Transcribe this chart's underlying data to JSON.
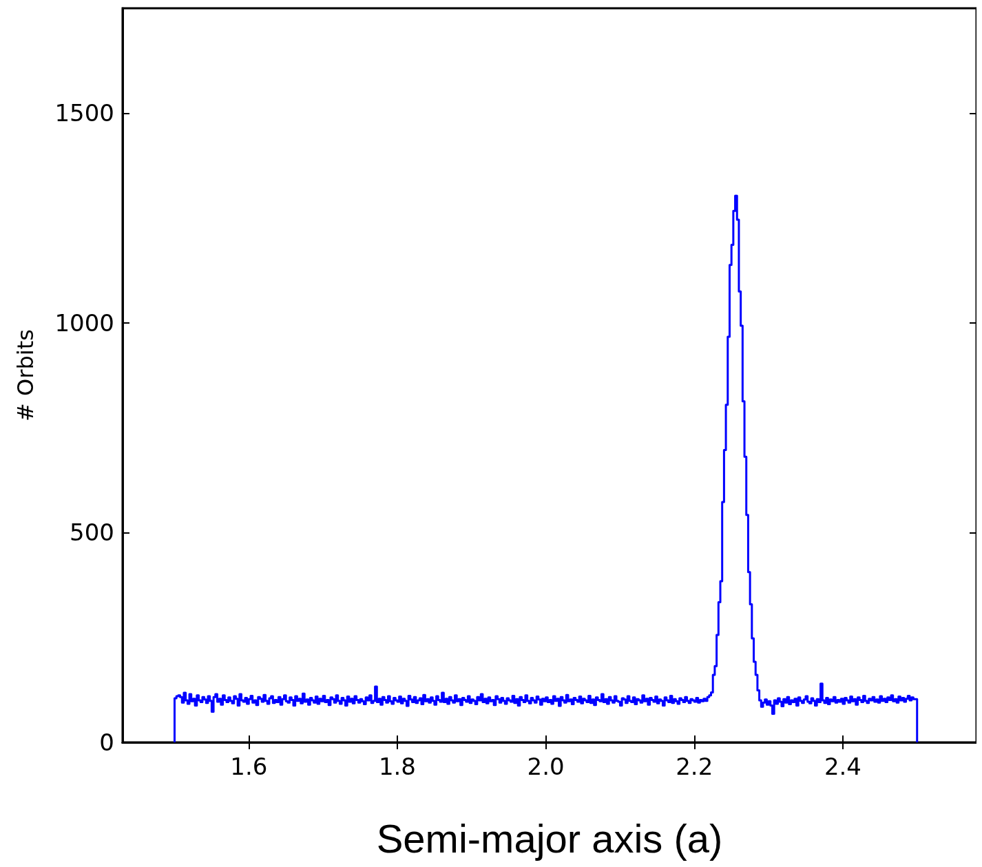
{
  "chart_data": {
    "type": "histogram",
    "xlabel": "Semi-major axis (a)",
    "ylabel": "# Orbits",
    "color": "#0000ff",
    "xlim": [
      1.43,
      2.58
    ],
    "ylim": [
      0,
      1750
    ],
    "xticks": [
      {
        "value": 1.6,
        "label": "1.6"
      },
      {
        "value": 1.8,
        "label": "1.8"
      },
      {
        "value": 2.0,
        "label": "2.0"
      },
      {
        "value": 2.2,
        "label": "2.2"
      },
      {
        "value": 2.4,
        "label": "2.4"
      }
    ],
    "yticks": [
      0,
      500,
      1000,
      1500
    ],
    "bins": [
      1.5,
      1.5025,
      1.505,
      1.5075,
      1.51,
      1.5125,
      1.515,
      1.5175,
      1.52,
      1.5225,
      1.525,
      1.5275,
      1.53,
      1.5325,
      1.535,
      1.5375,
      1.54,
      1.5425,
      1.545,
      1.5475,
      1.55,
      1.5525,
      1.555,
      1.5575,
      1.56,
      1.5625,
      1.565,
      1.5675,
      1.57,
      1.5725,
      1.575,
      1.5775,
      1.58,
      1.5825,
      1.585,
      1.5875,
      1.59,
      1.5925,
      1.595,
      1.5975,
      1.6,
      1.6025,
      1.605,
      1.6075,
      1.61,
      1.6125,
      1.615,
      1.6175,
      1.62,
      1.6225,
      1.625,
      1.6275,
      1.63,
      1.6325,
      1.635,
      1.6375,
      1.64,
      1.6425,
      1.645,
      1.6475,
      1.65,
      1.6525,
      1.655,
      1.6575,
      1.66,
      1.6625,
      1.665,
      1.6675,
      1.67,
      1.6725,
      1.675,
      1.6775,
      1.68,
      1.6825,
      1.685,
      1.6875,
      1.69,
      1.6925,
      1.695,
      1.6975,
      1.7,
      1.7025,
      1.705,
      1.7075,
      1.71,
      1.7125,
      1.715,
      1.7175,
      1.72,
      1.7225,
      1.725,
      1.7275,
      1.73,
      1.7325,
      1.735,
      1.7375,
      1.74,
      1.7425,
      1.745,
      1.7475,
      1.75,
      1.7525,
      1.755,
      1.7575,
      1.76,
      1.7625,
      1.765,
      1.7675,
      1.77,
      1.7725,
      1.775,
      1.7775,
      1.78,
      1.7825,
      1.785,
      1.7875,
      1.79,
      1.7925,
      1.795,
      1.7975,
      1.8,
      1.8025,
      1.805,
      1.8075,
      1.81,
      1.8125,
      1.815,
      1.8175,
      1.82,
      1.8225,
      1.825,
      1.8275,
      1.83,
      1.8325,
      1.835,
      1.8375,
      1.84,
      1.8425,
      1.845,
      1.8475,
      1.85,
      1.8525,
      1.855,
      1.8575,
      1.86,
      1.8625,
      1.865,
      1.8675,
      1.87,
      1.8725,
      1.875,
      1.8775,
      1.88,
      1.8825,
      1.885,
      1.8875,
      1.89,
      1.8925,
      1.895,
      1.8975,
      1.9,
      1.9025,
      1.905,
      1.9075,
      1.91,
      1.9125,
      1.915,
      1.9175,
      1.92,
      1.9225,
      1.925,
      1.9275,
      1.93,
      1.9325,
      1.935,
      1.9375,
      1.94,
      1.9425,
      1.945,
      1.9475,
      1.95,
      1.9525,
      1.955,
      1.9575,
      1.96,
      1.9625,
      1.965,
      1.9675,
      1.97,
      1.9725,
      1.975,
      1.9775,
      1.98,
      1.9825,
      1.985,
      1.9875,
      1.99,
      1.9925,
      1.995,
      1.9975,
      2.0,
      2.0025,
      2.005,
      2.0075,
      2.01,
      2.0125,
      2.015,
      2.0175,
      2.02,
      2.0225,
      2.025,
      2.0275,
      2.03,
      2.0325,
      2.035,
      2.0375,
      2.04,
      2.0425,
      2.045,
      2.0475,
      2.05,
      2.0525,
      2.055,
      2.0575,
      2.06,
      2.0625,
      2.065,
      2.0675,
      2.07,
      2.0725,
      2.075,
      2.0775,
      2.08,
      2.0825,
      2.085,
      2.0875,
      2.09,
      2.0925,
      2.095,
      2.0975,
      2.1,
      2.1025,
      2.105,
      2.1075,
      2.11,
      2.1125,
      2.115,
      2.1175,
      2.12,
      2.1225,
      2.125,
      2.1275,
      2.13,
      2.1325,
      2.135,
      2.1375,
      2.14,
      2.1425,
      2.145,
      2.1475,
      2.15,
      2.1525,
      2.155,
      2.1575,
      2.16,
      2.1625,
      2.165,
      2.1675,
      2.17,
      2.1725,
      2.175,
      2.1775,
      2.18,
      2.1825,
      2.185,
      2.1875,
      2.19,
      2.1925,
      2.195,
      2.1975,
      2.2,
      2.2025,
      2.205,
      2.2075,
      2.21,
      2.2125,
      2.215,
      2.2175,
      2.22,
      2.2225,
      2.225,
      2.2275,
      2.23,
      2.2325,
      2.235,
      2.2375,
      2.24,
      2.2425,
      2.245,
      2.2475,
      2.25,
      2.2525,
      2.255,
      2.2575,
      2.26,
      2.2625,
      2.265,
      2.2675,
      2.27,
      2.2725,
      2.275,
      2.2775,
      2.28,
      2.2825,
      2.285,
      2.2875,
      2.29,
      2.2925,
      2.295,
      2.2975,
      2.3,
      2.3025,
      2.305,
      2.3075,
      2.31,
      2.3125,
      2.315,
      2.3175,
      2.32,
      2.3225,
      2.325,
      2.3275,
      2.33,
      2.3325,
      2.335,
      2.3375,
      2.34,
      2.3425,
      2.345,
      2.3475,
      2.35,
      2.3525,
      2.355,
      2.3575,
      2.36,
      2.3625,
      2.365,
      2.3675,
      2.37,
      2.3725,
      2.375,
      2.3775,
      2.38,
      2.3825,
      2.385,
      2.3875,
      2.39,
      2.3925,
      2.395,
      2.3975,
      2.4,
      2.4025,
      2.405,
      2.4075,
      2.41,
      2.4125,
      2.415,
      2.4175,
      2.42,
      2.4225,
      2.425,
      2.4275,
      2.43,
      2.4325,
      2.435,
      2.4375,
      2.44,
      2.4425,
      2.445,
      2.4475,
      2.45,
      2.4525,
      2.455,
      2.4575,
      2.46,
      2.4625,
      2.465,
      2.4675,
      2.47,
      2.4725,
      2.475,
      2.4775,
      2.48,
      2.4825,
      2.485,
      2.4875,
      2.49,
      2.4925,
      2.495,
      2.4975,
      2.5
    ],
    "values": [
      105,
      110,
      112,
      108,
      95,
      118,
      100,
      92,
      115,
      98,
      104,
      88,
      112,
      100,
      96,
      108,
      102,
      94,
      110,
      99,
      73,
      108,
      115,
      97,
      104,
      90,
      112,
      101,
      96,
      107,
      99,
      93,
      110,
      104,
      88,
      115,
      100,
      97,
      106,
      92,
      103,
      111,
      95,
      100,
      89,
      108,
      104,
      97,
      113,
      99,
      92,
      105,
      110,
      94,
      101,
      96,
      108,
      90,
      103,
      112,
      98,
      95,
      107,
      101,
      88,
      110,
      99,
      104,
      93,
      116,
      97,
      102,
      90,
      106,
      100,
      95,
      109,
      92,
      104,
      98,
      111,
      96,
      101,
      89,
      107,
      103,
      95,
      112,
      99,
      92,
      106,
      100,
      88,
      109,
      97,
      104,
      93,
      110,
      101,
      95,
      103,
      98,
      91,
      107,
      100,
      112,
      94,
      99,
      133,
      96,
      104,
      90,
      108,
      101,
      95,
      110,
      98,
      92,
      106,
      100,
      97,
      109,
      93,
      104,
      99,
      87,
      111,
      102,
      96,
      108,
      94,
      100,
      105,
      91,
      113,
      98,
      103,
      95,
      107,
      99,
      90,
      110,
      101,
      97,
      118,
      96,
      104,
      92,
      108,
      100,
      95,
      112,
      98,
      103,
      89,
      106,
      101,
      97,
      110,
      94,
      102,
      99,
      91,
      108,
      100,
      115,
      96,
      104,
      93,
      107,
      98,
      101,
      89,
      110,
      103,
      95,
      106,
      99,
      92,
      105,
      100,
      97,
      111,
      94,
      103,
      88,
      108,
      101,
      96,
      112,
      99,
      93,
      106,
      100,
      95,
      109,
      102,
      90,
      104,
      98,
      107,
      96,
      101,
      92,
      110,
      99,
      104,
      87,
      108,
      100,
      95,
      113,
      98,
      102,
      91,
      106,
      101,
      97,
      109,
      93,
      104,
      100,
      96,
      111,
      94,
      102,
      89,
      107,
      101,
      98,
      115,
      96,
      103,
      92,
      108,
      100,
      95,
      110,
      99,
      97,
      88,
      105,
      102,
      94,
      110,
      99,
      96,
      107,
      91,
      103,
      100,
      95,
      112,
      98,
      104,
      90,
      106,
      101,
      97,
      109,
      93,
      102,
      99,
      88,
      107,
      100,
      96,
      111,
      94,
      103,
      98,
      92,
      105,
      101,
      96,
      108,
      99,
      94,
      103,
      100,
      97,
      106,
      95,
      101,
      98,
      104,
      99,
      108,
      112,
      119,
      161,
      182,
      256,
      334,
      384,
      573,
      697,
      805,
      967,
      1138,
      1186,
      1267,
      1303,
      1246,
      1075,
      993,
      813,
      681,
      542,
      406,
      329,
      248,
      192,
      161,
      124,
      100,
      85,
      95,
      102,
      90,
      98,
      88,
      68,
      100,
      92,
      105,
      97,
      86,
      103,
      95,
      108,
      91,
      100,
      96,
      104,
      88,
      107,
      99,
      94,
      102,
      110,
      97,
      93,
      105,
      99,
      88,
      103,
      96,
      140,
      100,
      94,
      106,
      91,
      102,
      98,
      108,
      95,
      101,
      97,
      104,
      92,
      106,
      100,
      95,
      109,
      98,
      103,
      90,
      107,
      101,
      96,
      111,
      99,
      94,
      104,
      100,
      108,
      97,
      102,
      95,
      110,
      99,
      104,
      96,
      107,
      101,
      112,
      98,
      103,
      95,
      109,
      100,
      106,
      97,
      104,
      111,
      100,
      107,
      103,
      103
    ]
  }
}
